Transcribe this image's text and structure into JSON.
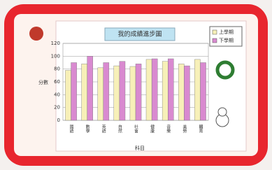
{
  "chart_data": {
    "type": "bar",
    "title": "我的成績進步圖",
    "x_label": "科目",
    "y_label": "分數",
    "categories": [
      "國語",
      "數學",
      "英語",
      "自然",
      "社會",
      "健康",
      "音樂",
      "美勞",
      "體育"
    ],
    "series": [
      {
        "name": "上學期",
        "color": "#f7f0b8",
        "values": [
          78,
          88,
          82,
          85,
          84,
          95,
          92,
          88,
          95
        ]
      },
      {
        "name": "下學期",
        "color": "#d98ad0",
        "values": [
          90,
          100,
          90,
          92,
          88,
          96,
          96,
          85,
          90
        ]
      }
    ],
    "ylim": [
      0,
      120
    ],
    "yticks": [
      0,
      20,
      40,
      60,
      80,
      100,
      120
    ],
    "grid": true,
    "legend": "top-right"
  }
}
